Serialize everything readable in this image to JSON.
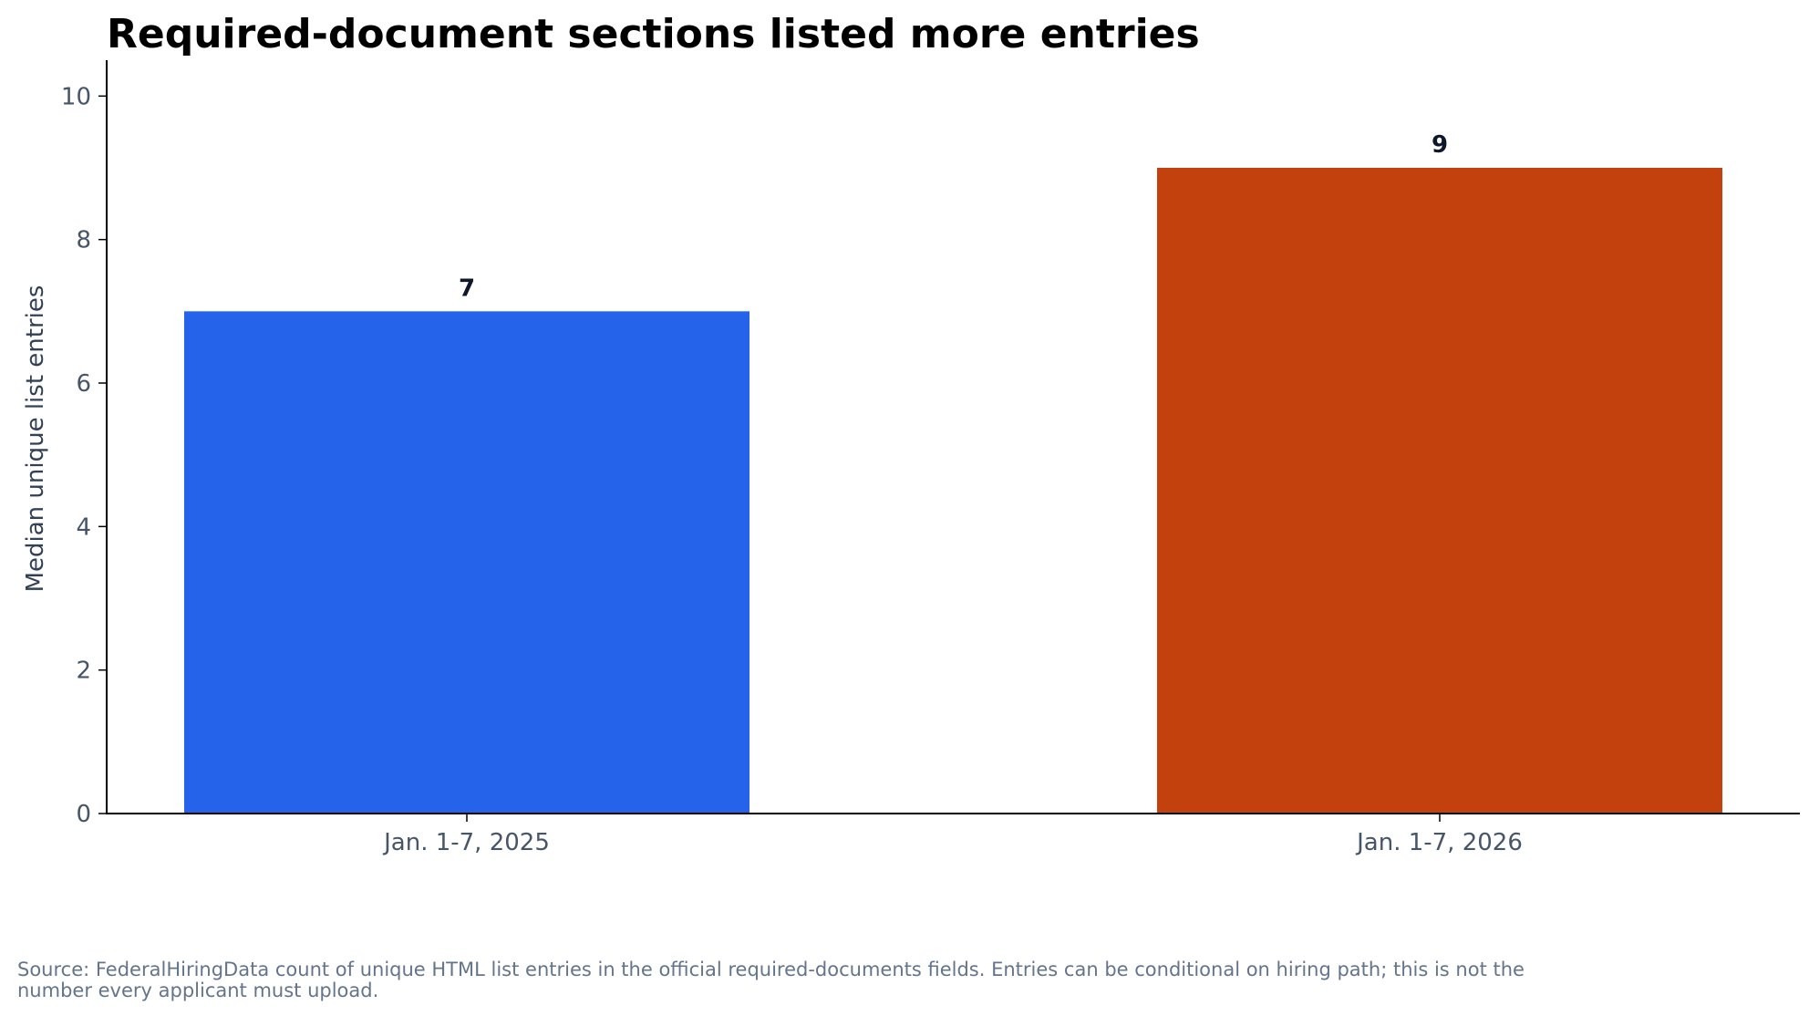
{
  "chart_data": {
    "type": "bar",
    "title": "Required-document sections listed more entries",
    "ylabel": "Median unique list entries",
    "xlabel": "",
    "categories": [
      "Jan. 1-7, 2025",
      "Jan. 1-7, 2026"
    ],
    "values": [
      7,
      9
    ],
    "data_labels": [
      "7",
      "9"
    ],
    "colors": [
      "#2563eb",
      "#c2410c"
    ],
    "ylim": [
      0,
      10.5
    ],
    "yticks": [
      0,
      2,
      4,
      6,
      8,
      10
    ],
    "ytick_labels": [
      "0",
      "2",
      "4",
      "6",
      "8",
      "10"
    ],
    "grid": false,
    "legend": "none"
  },
  "source_note": "Source: FederalHiringData count of unique HTML list entries in the official required-documents fields. Entries can be conditional on hiring path; this is not the number every applicant must upload."
}
